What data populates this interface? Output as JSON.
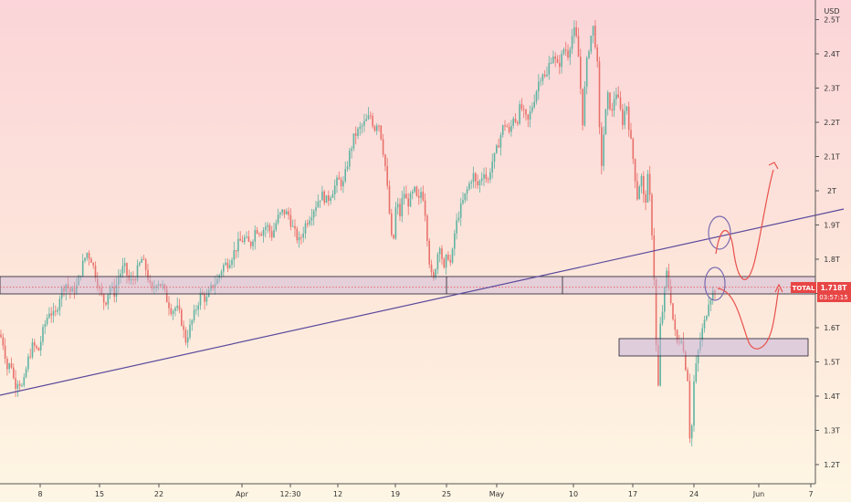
{
  "chart_data": {
    "type": "candlestick",
    "title": "",
    "currency": "USD",
    "symbol_label": "TOTAL",
    "last_price_label": "1.718T",
    "countdown": "03:57:15",
    "last_price": 1.718,
    "x_ticks": [
      "8",
      "15",
      "22",
      "Apr",
      "12:30",
      "12",
      "19",
      "25",
      "May",
      "10",
      "17",
      "24",
      "Jun",
      "7"
    ],
    "y_ticks": [
      "1.2T",
      "1.3T",
      "1.4T",
      "1.5T",
      "1.6T",
      "1.7T",
      "1.8T",
      "1.9T",
      "2T",
      "2.1T",
      "2.2T",
      "2.3T",
      "2.4T",
      "2.5T"
    ],
    "y_values": [
      1.2,
      1.3,
      1.4,
      1.5,
      1.6,
      1.7,
      1.8,
      1.9,
      2.0,
      2.1,
      2.2,
      2.3,
      2.4,
      2.5
    ],
    "ylim": [
      1.15,
      2.53
    ],
    "colors": {
      "up": "#5fb3a3",
      "down": "#e8716b",
      "trendline": "#5b4a9c",
      "zone_fill": "#c8b4d8",
      "zone_border": "#1f1f2e",
      "projection": "#e8504a",
      "marker": "#7a6bb0",
      "price_tag": "#e84545"
    },
    "price_path": [
      [
        0,
        1.58
      ],
      [
        4,
        1.55
      ],
      [
        8,
        1.48
      ],
      [
        12,
        1.5
      ],
      [
        16,
        1.43
      ],
      [
        20,
        1.45
      ],
      [
        25,
        1.42
      ],
      [
        30,
        1.5
      ],
      [
        36,
        1.55
      ],
      [
        42,
        1.53
      ],
      [
        48,
        1.6
      ],
      [
        54,
        1.65
      ],
      [
        60,
        1.63
      ],
      [
        66,
        1.7
      ],
      [
        72,
        1.73
      ],
      [
        78,
        1.7
      ],
      [
        84,
        1.72
      ],
      [
        90,
        1.78
      ],
      [
        95,
        1.82
      ],
      [
        100,
        1.8
      ],
      [
        105,
        1.75
      ],
      [
        110,
        1.7
      ],
      [
        115,
        1.67
      ],
      [
        120,
        1.72
      ],
      [
        125,
        1.7
      ],
      [
        130,
        1.75
      ],
      [
        136,
        1.78
      ],
      [
        142,
        1.73
      ],
      [
        148,
        1.75
      ],
      [
        155,
        1.8
      ],
      [
        160,
        1.77
      ],
      [
        166,
        1.7
      ],
      [
        172,
        1.74
      ],
      [
        178,
        1.72
      ],
      [
        183,
        1.68
      ],
      [
        188,
        1.65
      ],
      [
        193,
        1.66
      ],
      [
        198,
        1.63
      ],
      [
        203,
        1.56
      ],
      [
        208,
        1.6
      ],
      [
        214,
        1.65
      ],
      [
        220,
        1.7
      ],
      [
        226,
        1.68
      ],
      [
        232,
        1.72
      ],
      [
        238,
        1.74
      ],
      [
        244,
        1.78
      ],
      [
        250,
        1.79
      ],
      [
        256,
        1.82
      ],
      [
        262,
        1.85
      ],
      [
        268,
        1.86
      ],
      [
        274,
        1.84
      ],
      [
        280,
        1.89
      ],
      [
        286,
        1.88
      ],
      [
        292,
        1.9
      ],
      [
        298,
        1.87
      ],
      [
        304,
        1.92
      ],
      [
        310,
        1.94
      ],
      [
        316,
        1.93
      ],
      [
        322,
        1.88
      ],
      [
        328,
        1.85
      ],
      [
        334,
        1.9
      ],
      [
        340,
        1.93
      ],
      [
        346,
        1.96
      ],
      [
        352,
        1.99
      ],
      [
        358,
        1.97
      ],
      [
        364,
        2.0
      ],
      [
        370,
        2.03
      ],
      [
        376,
        2.02
      ],
      [
        382,
        2.1
      ],
      [
        388,
        2.16
      ],
      [
        394,
        2.18
      ],
      [
        400,
        2.2
      ],
      [
        406,
        2.22
      ],
      [
        410,
        2.18
      ],
      [
        414,
        2.21
      ],
      [
        418,
        2.15
      ],
      [
        422,
        2.07
      ],
      [
        426,
        1.95
      ],
      [
        430,
        1.82
      ],
      [
        434,
        1.97
      ],
      [
        438,
        1.93
      ],
      [
        442,
        2.0
      ],
      [
        446,
        1.96
      ],
      [
        450,
        1.98
      ],
      [
        454,
        2.0
      ],
      [
        458,
        1.96
      ],
      [
        462,
        2.01
      ],
      [
        466,
        1.93
      ],
      [
        470,
        1.8
      ],
      [
        474,
        1.72
      ],
      [
        478,
        1.8
      ],
      [
        482,
        1.85
      ],
      [
        486,
        1.76
      ],
      [
        490,
        1.82
      ],
      [
        494,
        1.78
      ],
      [
        498,
        1.88
      ],
      [
        502,
        1.93
      ],
      [
        506,
        1.96
      ],
      [
        510,
        1.99
      ],
      [
        514,
        2.02
      ],
      [
        518,
        2.05
      ],
      [
        522,
        2.01
      ],
      [
        526,
        2.03
      ],
      [
        530,
        2.06
      ],
      [
        534,
        2.02
      ],
      [
        538,
        2.08
      ],
      [
        542,
        2.1
      ],
      [
        546,
        2.14
      ],
      [
        550,
        2.18
      ],
      [
        554,
        2.2
      ],
      [
        558,
        2.16
      ],
      [
        562,
        2.22
      ],
      [
        566,
        2.2
      ],
      [
        570,
        2.25
      ],
      [
        574,
        2.22
      ],
      [
        578,
        2.2
      ],
      [
        582,
        2.24
      ],
      [
        586,
        2.28
      ],
      [
        590,
        2.32
      ],
      [
        594,
        2.35
      ],
      [
        598,
        2.32
      ],
      [
        602,
        2.38
      ],
      [
        606,
        2.4
      ],
      [
        610,
        2.36
      ],
      [
        614,
        2.38
      ],
      [
        618,
        2.42
      ],
      [
        622,
        2.4
      ],
      [
        626,
        2.45
      ],
      [
        630,
        2.47
      ],
      [
        634,
        2.38
      ],
      [
        638,
        2.2
      ],
      [
        642,
        2.36
      ],
      [
        646,
        2.44
      ],
      [
        650,
        2.48
      ],
      [
        654,
        2.38
      ],
      [
        658,
        2.05
      ],
      [
        662,
        2.2
      ],
      [
        666,
        2.28
      ],
      [
        670,
        2.22
      ],
      [
        674,
        2.3
      ],
      [
        678,
        2.25
      ],
      [
        682,
        2.2
      ],
      [
        686,
        2.26
      ],
      [
        690,
        2.16
      ],
      [
        694,
        2.08
      ],
      [
        698,
        1.98
      ],
      [
        702,
        2.05
      ],
      [
        706,
        1.95
      ],
      [
        710,
        2.05
      ],
      [
        714,
        1.88
      ],
      [
        718,
        1.65
      ],
      [
        720,
        1.3
      ],
      [
        722,
        1.58
      ],
      [
        726,
        1.66
      ],
      [
        730,
        1.76
      ],
      [
        734,
        1.7
      ],
      [
        738,
        1.6
      ],
      [
        742,
        1.55
      ],
      [
        746,
        1.58
      ],
      [
        750,
        1.5
      ],
      [
        754,
        1.44
      ],
      [
        756,
        1.22
      ],
      [
        760,
        1.44
      ],
      [
        764,
        1.52
      ],
      [
        768,
        1.58
      ],
      [
        772,
        1.62
      ],
      [
        776,
        1.68
      ],
      [
        780,
        1.7
      ],
      [
        784,
        1.718
      ]
    ]
  }
}
